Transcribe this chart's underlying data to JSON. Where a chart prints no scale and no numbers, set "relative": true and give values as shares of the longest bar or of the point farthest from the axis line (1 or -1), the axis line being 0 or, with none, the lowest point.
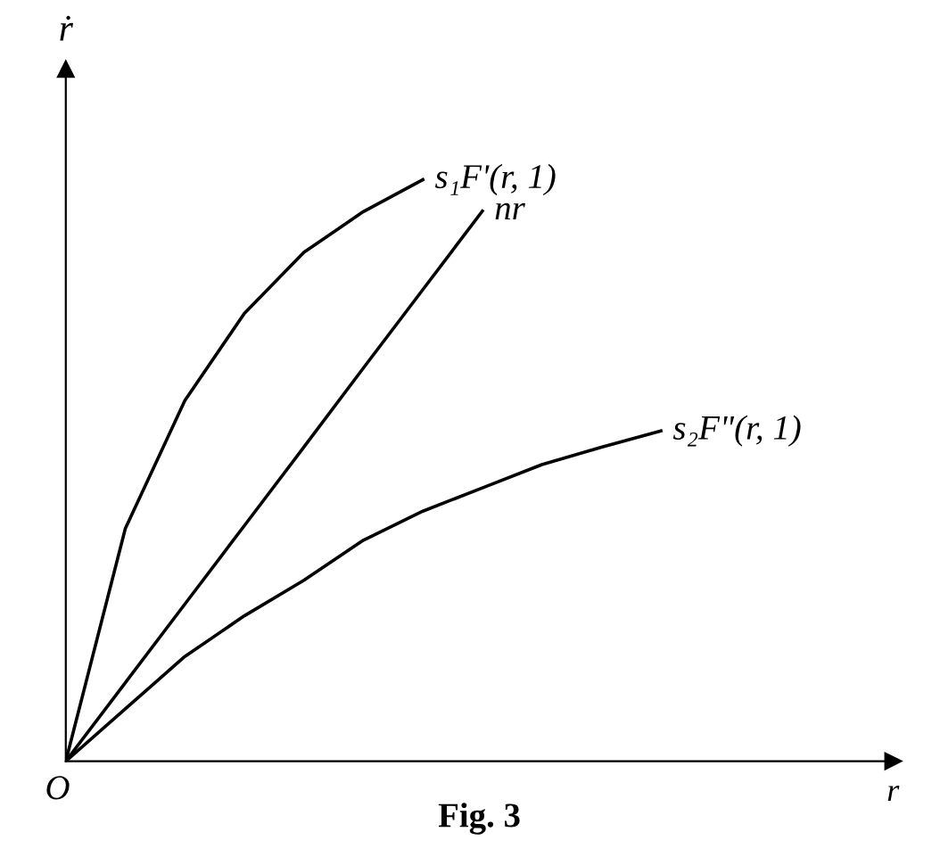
{
  "chart_data": {
    "type": "line",
    "relative": true,
    "ylabel": "ṙ",
    "marker": "none",
    "line_style": "solid",
    "annotations": [
      "O",
      "Fig. 3",
      "r"
    ],
    "categories": [
      null,
      null,
      null,
      null,
      null,
      null,
      null,
      null,
      null,
      null,
      null
    ],
    "series": [
      {
        "name": "s₁F'(r, 1)",
        "color": "#000000",
        "values": [
          0,
          0.4,
          0.62,
          0.77,
          0.875,
          0.945,
          1,
          null,
          null,
          null,
          null
        ]
      },
      {
        "name": "nr",
        "color": "#000000",
        "values": [
          0,
          0.135,
          0.27,
          0.405,
          0.54,
          0.676,
          0.811,
          0.946,
          null,
          null,
          null
        ]
      },
      {
        "name": "s₂F\"(r, 1)",
        "color": "#000000",
        "values": [
          0,
          0.09,
          0.18,
          0.25,
          0.311,
          0.38,
          0.43,
          0.47,
          0.51,
          0.54,
          0.568
        ]
      }
    ]
  }
}
